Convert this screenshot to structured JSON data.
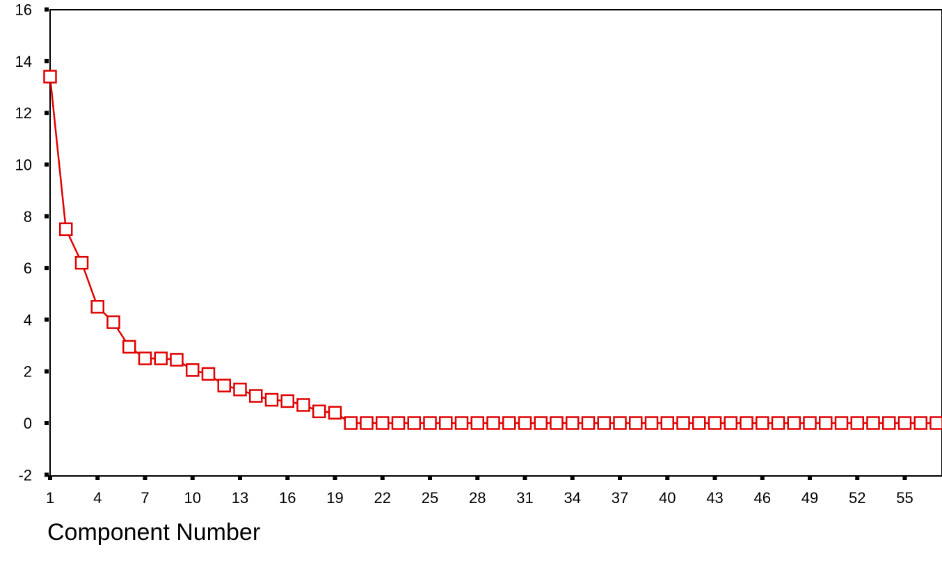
{
  "chart_data": {
    "type": "line",
    "title": "",
    "xlabel": "Component Number",
    "ylabel": "",
    "x_range": [
      1,
      57
    ],
    "ylim": [
      -2,
      16
    ],
    "y_ticks": [
      "-2",
      "0",
      "2",
      "4",
      "6",
      "8",
      "10",
      "12",
      "14",
      "16"
    ],
    "x_ticks": [
      "1",
      "4",
      "7",
      "10",
      "13",
      "16",
      "19",
      "22",
      "25",
      "28",
      "31",
      "34",
      "37",
      "40",
      "43",
      "46",
      "49",
      "52",
      "55"
    ],
    "grid": false,
    "marker": "square",
    "series": [
      {
        "color": "#e00000",
        "x": [
          1,
          2,
          3,
          4,
          5,
          6,
          7,
          8,
          9,
          10,
          11,
          12,
          13,
          14,
          15,
          16,
          17,
          18,
          19,
          20,
          21,
          22,
          23,
          24,
          25,
          26,
          27,
          28,
          29,
          30,
          31,
          32,
          33,
          34,
          35,
          36,
          37,
          38,
          39,
          40,
          41,
          42,
          43,
          44,
          45,
          46,
          47,
          48,
          49,
          50,
          51,
          52,
          53,
          54,
          55,
          56,
          57
        ],
        "values": [
          13.4,
          7.5,
          6.2,
          4.5,
          3.9,
          2.95,
          2.5,
          2.5,
          2.45,
          2.05,
          1.9,
          1.45,
          1.3,
          1.05,
          0.9,
          0.85,
          0.7,
          0.45,
          0.4,
          0,
          0,
          0,
          0,
          0,
          0,
          0,
          0,
          0,
          0,
          0,
          0,
          0,
          0,
          0,
          0,
          0,
          0,
          0,
          0,
          0,
          0,
          0,
          0,
          0,
          0,
          0,
          0,
          0,
          0,
          0,
          0,
          0,
          0,
          0,
          0,
          0,
          0
        ]
      }
    ]
  }
}
